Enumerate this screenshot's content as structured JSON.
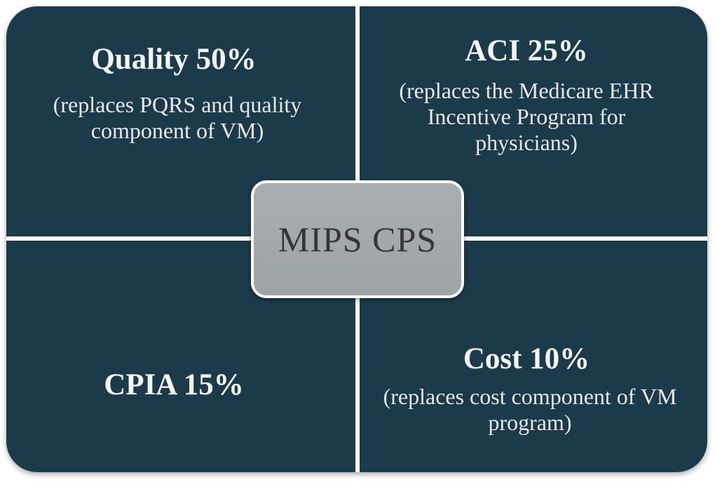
{
  "center": {
    "label": "MIPS CPS"
  },
  "quadrants": {
    "top_left": {
      "title": "Quality 50%",
      "description": "(replaces PQRS and quality component of VM)"
    },
    "top_right": {
      "title": "ACI 25%",
      "description": "(replaces the Medicare EHR Incentive Program for physicians)"
    },
    "bottom_left": {
      "title": "CPIA 15%"
    },
    "bottom_right": {
      "title": "Cost 10%",
      "description": "(replaces cost component of VM program)"
    }
  },
  "colors": {
    "quadrant_fill": "#1b3b4a",
    "center_fill": "#a9aeb1",
    "divider": "#ffffff"
  }
}
